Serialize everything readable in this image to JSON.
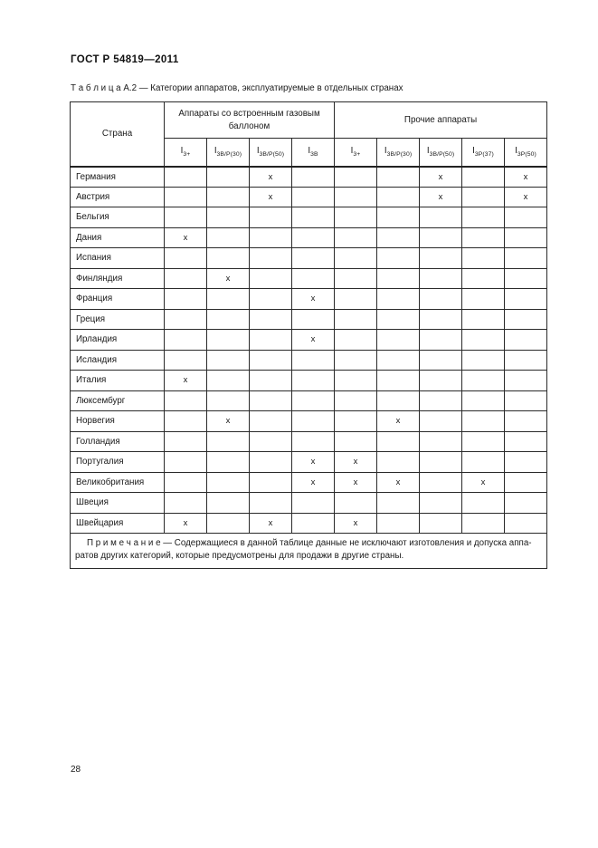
{
  "page": {
    "doc_header": "ГОСТ Р 54819—2011",
    "caption": "Т а б л и ц а   А.2 — Категории аппаратов, эксплуатируемые в отдельных странах",
    "page_number": "28"
  },
  "colors": {
    "ink": "#1a1a1a",
    "border": "#2a2a2a",
    "background": "#ffffff"
  },
  "table": {
    "country_header": "Страна",
    "group1": "Аппараты со встроенным газовым баллоном",
    "group2": "Прочие аппараты",
    "columns": [
      {
        "base": "I",
        "sub": "3+"
      },
      {
        "base": "I",
        "sub": "3В/Р(30)"
      },
      {
        "base": "I",
        "sub": "3В/Р(50)"
      },
      {
        "base": "I",
        "sub": "3В"
      },
      {
        "base": "I",
        "sub": "3+"
      },
      {
        "base": "I",
        "sub": "3В/Р(30)"
      },
      {
        "base": "I",
        "sub": "3В/Р(50)"
      },
      {
        "base": "I",
        "sub": "3Р(37)"
      },
      {
        "base": "I",
        "sub": "3Р(50)"
      }
    ],
    "rows": [
      {
        "country": "Германия",
        "marks": [
          "",
          "",
          "x",
          "",
          "",
          "",
          "x",
          "",
          "x"
        ]
      },
      {
        "country": "Австрия",
        "marks": [
          "",
          "",
          "x",
          "",
          "",
          "",
          "x",
          "",
          "x"
        ]
      },
      {
        "country": "Бельгия",
        "marks": [
          "",
          "",
          "",
          "",
          "",
          "",
          "",
          "",
          ""
        ]
      },
      {
        "country": "Дания",
        "marks": [
          "x",
          "",
          "",
          "",
          "",
          "",
          "",
          "",
          ""
        ]
      },
      {
        "country": "Испания",
        "marks": [
          "",
          "",
          "",
          "",
          "",
          "",
          "",
          "",
          ""
        ]
      },
      {
        "country": "Финляндия",
        "marks": [
          "",
          "x",
          "",
          "",
          "",
          "",
          "",
          "",
          ""
        ]
      },
      {
        "country": "Франция",
        "marks": [
          "",
          "",
          "",
          "x",
          "",
          "",
          "",
          "",
          ""
        ]
      },
      {
        "country": "Греция",
        "marks": [
          "",
          "",
          "",
          "",
          "",
          "",
          "",
          "",
          ""
        ]
      },
      {
        "country": "Ирландия",
        "marks": [
          "",
          "",
          "",
          "x",
          "",
          "",
          "",
          "",
          ""
        ]
      },
      {
        "country": "Исландия",
        "marks": [
          "",
          "",
          "",
          "",
          "",
          "",
          "",
          "",
          ""
        ]
      },
      {
        "country": "Италия",
        "marks": [
          "x",
          "",
          "",
          "",
          "",
          "",
          "",
          "",
          ""
        ]
      },
      {
        "country": "Люксембург",
        "marks": [
          "",
          "",
          "",
          "",
          "",
          "",
          "",
          "",
          ""
        ]
      },
      {
        "country": "Норвегия",
        "marks": [
          "",
          "x",
          "",
          "",
          "",
          "x",
          "",
          "",
          ""
        ]
      },
      {
        "country": "Голландия",
        "marks": [
          "",
          "",
          "",
          "",
          "",
          "",
          "",
          "",
          ""
        ]
      },
      {
        "country": "Португалия",
        "marks": [
          "",
          "",
          "",
          "x",
          "x",
          "",
          "",
          "",
          ""
        ]
      },
      {
        "country": "Великобритания",
        "marks": [
          "",
          "",
          "",
          "x",
          "x",
          "x",
          "",
          "x",
          ""
        ]
      },
      {
        "country": "Швеция",
        "marks": [
          "",
          "",
          "",
          "",
          "",
          "",
          "",
          "",
          ""
        ]
      },
      {
        "country": "Швейцария",
        "marks": [
          "x",
          "",
          "x",
          "",
          "x",
          "",
          "",
          "",
          ""
        ]
      }
    ],
    "note_line1": "П р и м е ч а н и е — Содержащиеся в данной таблице данные не исключают изготовления и допуска аппа-",
    "note_line2": "ратов других категорий, которые предусмотрены для продажи в другие страны."
  }
}
